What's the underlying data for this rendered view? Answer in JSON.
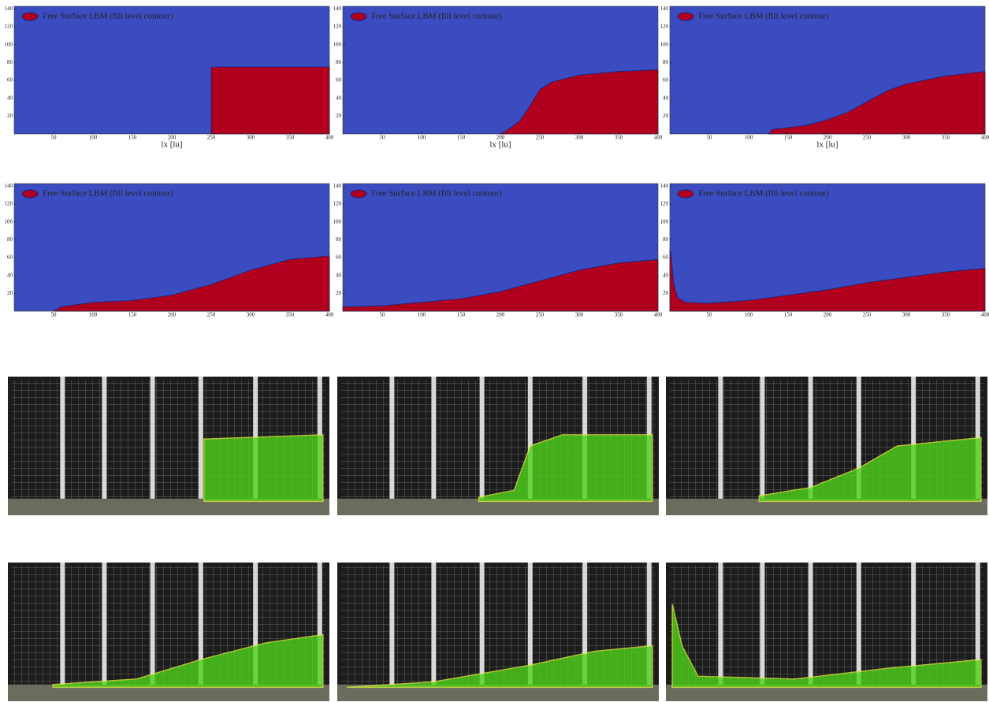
{
  "chart_data": [
    {
      "type": "area",
      "legend": "Free Surface LBM (fill level contour)",
      "xlabel": "lx [lu]",
      "xlim": [
        0,
        400
      ],
      "ylim": [
        0,
        143
      ],
      "xticks": [
        50,
        100,
        150,
        200,
        250,
        300,
        350,
        400
      ],
      "yticks": [
        20,
        40,
        60,
        80,
        100,
        120,
        140
      ],
      "background": "#3b4cc0",
      "color": "#b0001e",
      "x": [
        250,
        250,
        400
      ],
      "values": [
        0,
        75,
        75
      ]
    },
    {
      "type": "area",
      "legend": "Free Surface LBM (fill level contour)",
      "xlabel": "lx [lu]",
      "xlim": [
        0,
        400
      ],
      "ylim": [
        0,
        143
      ],
      "xticks": [
        50,
        100,
        150,
        200,
        250,
        300,
        350,
        400
      ],
      "yticks": [
        20,
        40,
        60,
        80,
        100,
        120,
        140
      ],
      "background": "#3b4cc0",
      "color": "#b0001e",
      "x": [
        200,
        210,
        225,
        240,
        250,
        265,
        300,
        350,
        400
      ],
      "values": [
        0,
        5,
        15,
        35,
        50,
        58,
        66,
        70,
        72
      ]
    },
    {
      "type": "area",
      "legend": "Free Surface LBM (fill level contour)",
      "xlabel": "lx [lu]",
      "xlim": [
        0,
        400
      ],
      "ylim": [
        0,
        143
      ],
      "xticks": [
        50,
        100,
        150,
        200,
        250,
        300,
        350,
        400
      ],
      "yticks": [
        20,
        40,
        60,
        80,
        100,
        120,
        140
      ],
      "background": "#3b4cc0",
      "color": "#b0001e",
      "x": [
        125,
        130,
        150,
        175,
        200,
        225,
        250,
        275,
        300,
        350,
        400
      ],
      "values": [
        0,
        5,
        7,
        10,
        16,
        24,
        36,
        48,
        56,
        65,
        70
      ]
    },
    {
      "type": "area",
      "legend": "Free Surface LBM (fill level contour)",
      "xlim": [
        0,
        400
      ],
      "ylim": [
        0,
        143
      ],
      "xticks": [
        50,
        100,
        150,
        200,
        250,
        300,
        350,
        400
      ],
      "yticks": [
        20,
        40,
        60,
        80,
        100,
        120,
        140
      ],
      "background": "#3b4cc0",
      "color": "#b0001e",
      "x": [
        50,
        60,
        100,
        150,
        200,
        250,
        300,
        350,
        400
      ],
      "values": [
        0,
        5,
        10,
        12,
        18,
        30,
        46,
        58,
        62
      ]
    },
    {
      "type": "area",
      "legend": "Free Surface LBM (fill level contour)",
      "xlim": [
        0,
        400
      ],
      "ylim": [
        0,
        143
      ],
      "xticks": [
        50,
        100,
        150,
        200,
        250,
        300,
        350,
        400
      ],
      "yticks": [
        20,
        40,
        60,
        80,
        100,
        120,
        140
      ],
      "background": "#3b4cc0",
      "color": "#b0001e",
      "x": [
        0,
        10,
        50,
        100,
        150,
        200,
        250,
        300,
        350,
        400
      ],
      "values": [
        5,
        5,
        6,
        10,
        14,
        22,
        34,
        46,
        54,
        58
      ]
    },
    {
      "type": "area",
      "legend": "Free Surface LBM (fill level contour)",
      "xlim": [
        0,
        400
      ],
      "ylim": [
        0,
        143
      ],
      "xticks": [
        50,
        100,
        150,
        200,
        250,
        300,
        350,
        400
      ],
      "yticks": [
        20,
        40,
        60,
        80,
        100,
        120,
        140
      ],
      "background": "#3b4cc0",
      "color": "#b0001e",
      "x": [
        0,
        2,
        5,
        10,
        20,
        50,
        100,
        150,
        200,
        250,
        300,
        350,
        400
      ],
      "values": [
        70,
        60,
        30,
        15,
        10,
        9,
        12,
        18,
        24,
        32,
        38,
        44,
        48
      ]
    }
  ]
}
